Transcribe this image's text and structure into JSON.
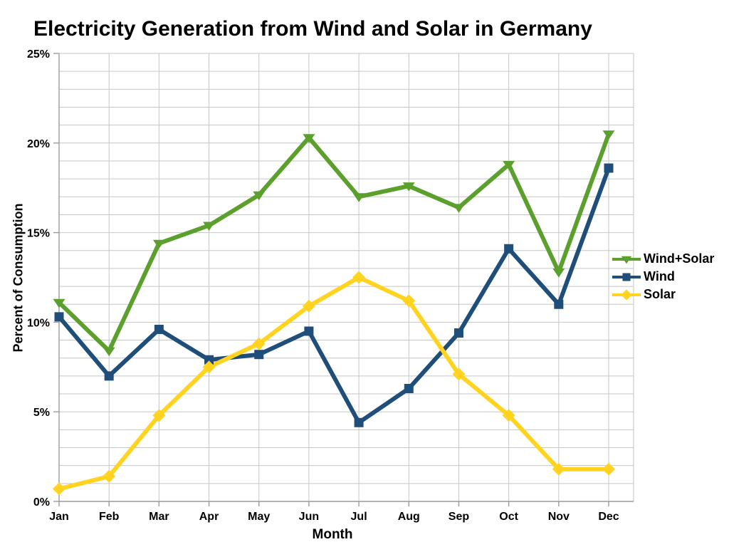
{
  "chart_data": {
    "type": "line",
    "title": "Electricity Generation from Wind and Solar in Germany",
    "xlabel": "Month",
    "ylabel": "Percent of Consumption",
    "categories": [
      "Jan",
      "Feb",
      "Mar",
      "Apr",
      "May",
      "Jun",
      "Jul",
      "Aug",
      "Sep",
      "Oct",
      "Nov",
      "Dec"
    ],
    "ylim": [
      0,
      25
    ],
    "y_major_step": 5,
    "y_minor_step": 1,
    "y_tick_labels": [
      "0%",
      "5%",
      "10%",
      "15%",
      "20%",
      "25%"
    ],
    "grid": true,
    "legend_position": "right",
    "colors": {
      "grid": "#c6c6c6",
      "axis": "#9c9c9c",
      "text": "#000000"
    },
    "series": [
      {
        "name": "Wind+Solar",
        "color": "#5B9F2D",
        "marker": "triangle-down",
        "values": [
          11.1,
          8.4,
          14.4,
          15.4,
          17.1,
          20.3,
          17.0,
          17.6,
          16.4,
          18.8,
          12.8,
          20.5
        ]
      },
      {
        "name": "Wind",
        "color": "#1F4E7A",
        "marker": "square",
        "values": [
          10.3,
          7.0,
          9.6,
          7.9,
          8.2,
          9.5,
          4.4,
          6.3,
          9.4,
          14.1,
          11.0,
          18.6
        ]
      },
      {
        "name": "Solar",
        "color": "#FFD320",
        "marker": "diamond",
        "values": [
          0.7,
          1.4,
          4.8,
          7.5,
          8.8,
          10.9,
          12.5,
          11.2,
          7.1,
          4.8,
          1.8,
          1.8
        ]
      }
    ]
  }
}
